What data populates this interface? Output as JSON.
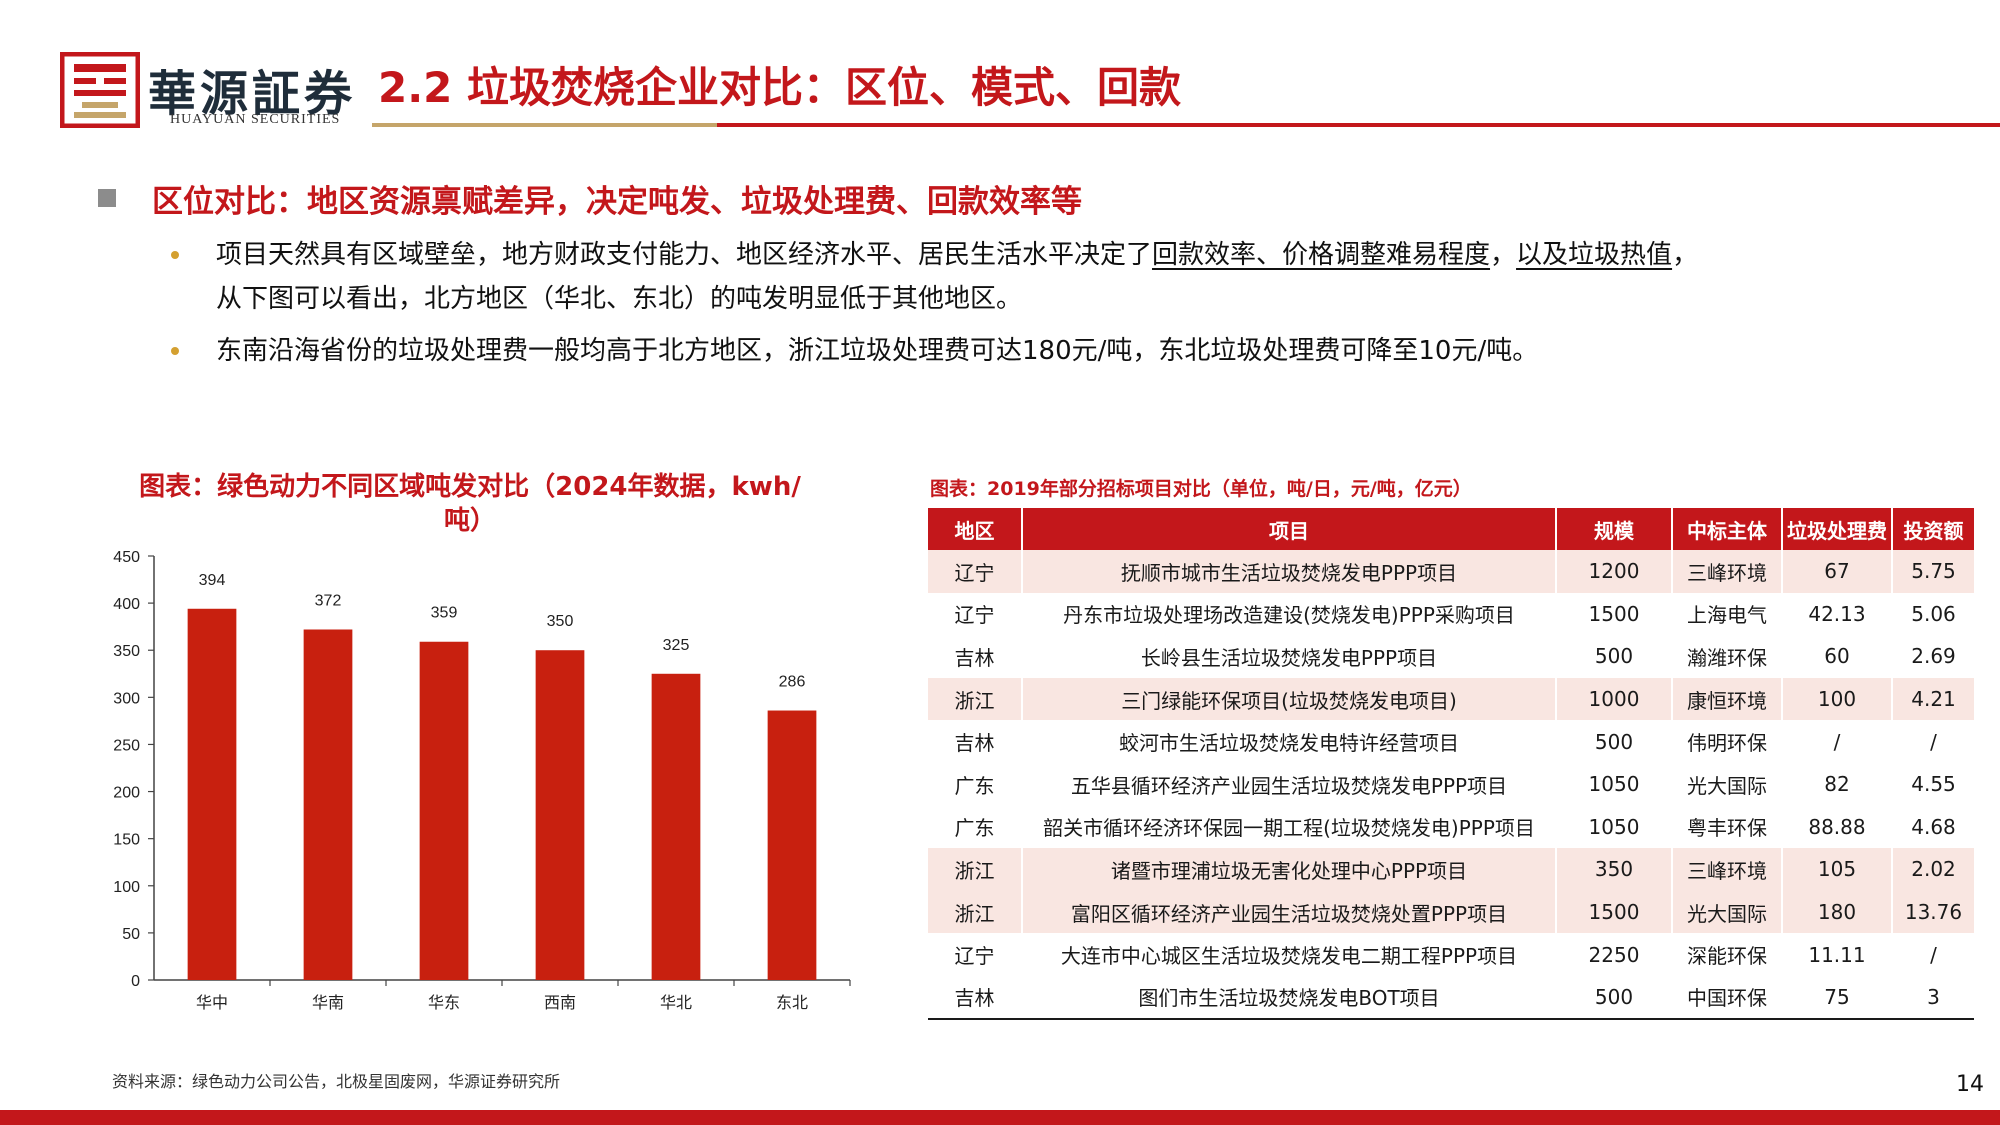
{
  "colors": {
    "accent": "#c3171b",
    "gold": "#c5a56a",
    "bar": "#c8200f",
    "highlight_row": "#f9e6e1"
  },
  "header": {
    "logo_icon": "huayuan-seal-logo",
    "brand_cn": "華源証券",
    "brand_en": "HUAYUAN SECURITIES",
    "title": "2.2 垃圾焚烧企业对比：区位、模式、回款"
  },
  "headline": "区位对比：地区资源禀赋差异，决定吨发、垃圾处理费、回款效率等",
  "bullets": [
    {
      "line1_pre": "项目天然具有区域壁垒，地方财政支付能力、地区经济水平、居民生活水平决定了",
      "line1_u1": "回款效率、价格调整难易程度",
      "line1_mid": "，",
      "line1_u2": "以及垃圾热值",
      "line1_post": "，",
      "line2": "从下图可以看出，北方地区（华北、东北）的吨发明显低于其他地区。"
    },
    {
      "text": "东南沿海省份的垃圾处理费一般均高于北方地区，浙江垃圾处理费可达180元/吨，东北垃圾处理费可降至10元/吨。"
    }
  ],
  "chart_data": {
    "type": "bar",
    "title": "图表：绿色动力不同区域吨发对比（2024年数据，kwh/吨）",
    "categories": [
      "华中",
      "华南",
      "华东",
      "西南",
      "华北",
      "东北"
    ],
    "values": [
      394,
      372,
      359,
      350,
      325,
      286
    ],
    "ylim": [
      0,
      450
    ],
    "yticks": [
      0,
      50,
      100,
      150,
      200,
      250,
      300,
      350,
      400,
      450
    ],
    "xlabel": "",
    "ylabel": "",
    "grid": false,
    "data_labels": true
  },
  "table": {
    "title": "图表：2019年部分招标项目对比（单位，吨/日，元/吨，亿元）",
    "headers": [
      "地区",
      "项目",
      "规模",
      "中标主体",
      "垃圾处理费",
      "投资额"
    ],
    "rows": [
      {
        "highlight": true,
        "cells": [
          "辽宁",
          "抚顺市城市生活垃圾焚烧发电PPP项目",
          "1200",
          "三峰环境",
          "67",
          "5.75"
        ]
      },
      {
        "highlight": false,
        "cells": [
          "辽宁",
          "丹东市垃圾处理场改造建设(焚烧发电)PPP采购项目",
          "1500",
          "上海电气",
          "42.13",
          "5.06"
        ]
      },
      {
        "highlight": false,
        "cells": [
          "吉林",
          "长岭县生活垃圾焚烧发电PPP项目",
          "500",
          "瀚潍环保",
          "60",
          "2.69"
        ]
      },
      {
        "highlight": true,
        "cells": [
          "浙江",
          "三门绿能环保项目(垃圾焚烧发电项目)",
          "1000",
          "康恒环境",
          "100",
          "4.21"
        ]
      },
      {
        "highlight": false,
        "cells": [
          "吉林",
          "蛟河市生活垃圾焚烧发电特许经营项目",
          "500",
          "伟明环保",
          "/",
          "/"
        ]
      },
      {
        "highlight": false,
        "cells": [
          "广东",
          "五华县循环经济产业园生活垃圾焚烧发电PPP项目",
          "1050",
          "光大国际",
          "82",
          "4.55"
        ]
      },
      {
        "highlight": false,
        "cells": [
          "广东",
          "韶关市循环经济环保园一期工程(垃圾焚烧发电)PPP项目",
          "1050",
          "粤丰环保",
          "88.88",
          "4.68"
        ]
      },
      {
        "highlight": true,
        "cells": [
          "浙江",
          "诸暨市理浦垃圾无害化处理中心PPP项目",
          "350",
          "三峰环境",
          "105",
          "2.02"
        ]
      },
      {
        "highlight": true,
        "cells": [
          "浙江",
          "富阳区循环经济产业园生活垃圾焚烧处置PPP项目",
          "1500",
          "光大国际",
          "180",
          "13.76"
        ]
      },
      {
        "highlight": false,
        "cells": [
          "辽宁",
          "大连市中心城区生活垃圾焚烧发电二期工程PPP项目",
          "2250",
          "深能环保",
          "11.11",
          "/"
        ]
      },
      {
        "highlight": false,
        "cells": [
          "吉林",
          "图们市生活垃圾焚烧发电BOT项目",
          "500",
          "中国环保",
          "75",
          "3"
        ]
      }
    ]
  },
  "footer": {
    "source": "资料来源：绿色动力公司公告，北极星固废网，华源证券研究所",
    "page_number": "14"
  }
}
